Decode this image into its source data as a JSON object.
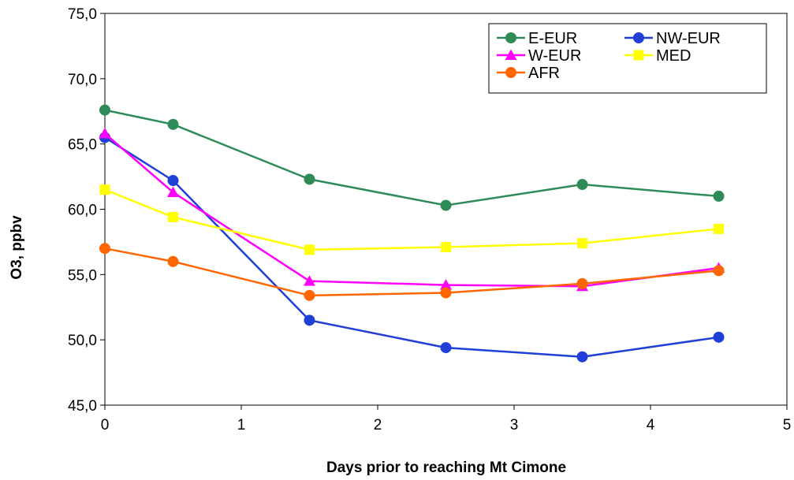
{
  "chart_data": {
    "type": "line",
    "title": "",
    "xlabel": "Days prior to reaching Mt Cimone",
    "ylabel": "O3, ppbv",
    "xlim": [
      0,
      5
    ],
    "ylim": [
      45,
      75
    ],
    "x_ticks": [
      "0",
      "1",
      "2",
      "3",
      "4",
      "5"
    ],
    "y_ticks": [
      "45,0",
      "50,0",
      "55,0",
      "60,0",
      "65,0",
      "70,0",
      "75,0"
    ],
    "grid": false,
    "legend_position": "top-right",
    "x": [
      0,
      0.5,
      1.5,
      2.5,
      3.5,
      4.5
    ],
    "series": [
      {
        "name": "E-EUR",
        "values": [
          67.6,
          66.5,
          62.3,
          60.3,
          61.9,
          61.0
        ],
        "color": "#2e8b57",
        "marker": "circle"
      },
      {
        "name": "NW-EUR",
        "values": [
          65.5,
          62.2,
          51.5,
          49.4,
          48.7,
          50.2
        ],
        "color": "#1f3fd6",
        "marker": "circle"
      },
      {
        "name": "W-EUR",
        "values": [
          65.8,
          61.3,
          54.5,
          54.2,
          54.1,
          55.5
        ],
        "color": "#ff00ff",
        "marker": "triangle"
      },
      {
        "name": "MED",
        "values": [
          61.5,
          59.4,
          56.9,
          57.1,
          57.4,
          58.5
        ],
        "color": "#ffff00",
        "marker": "square"
      },
      {
        "name": "AFR",
        "values": [
          57.0,
          56.0,
          53.4,
          53.6,
          54.3,
          55.3
        ],
        "color": "#ff6600",
        "marker": "circle"
      }
    ]
  }
}
